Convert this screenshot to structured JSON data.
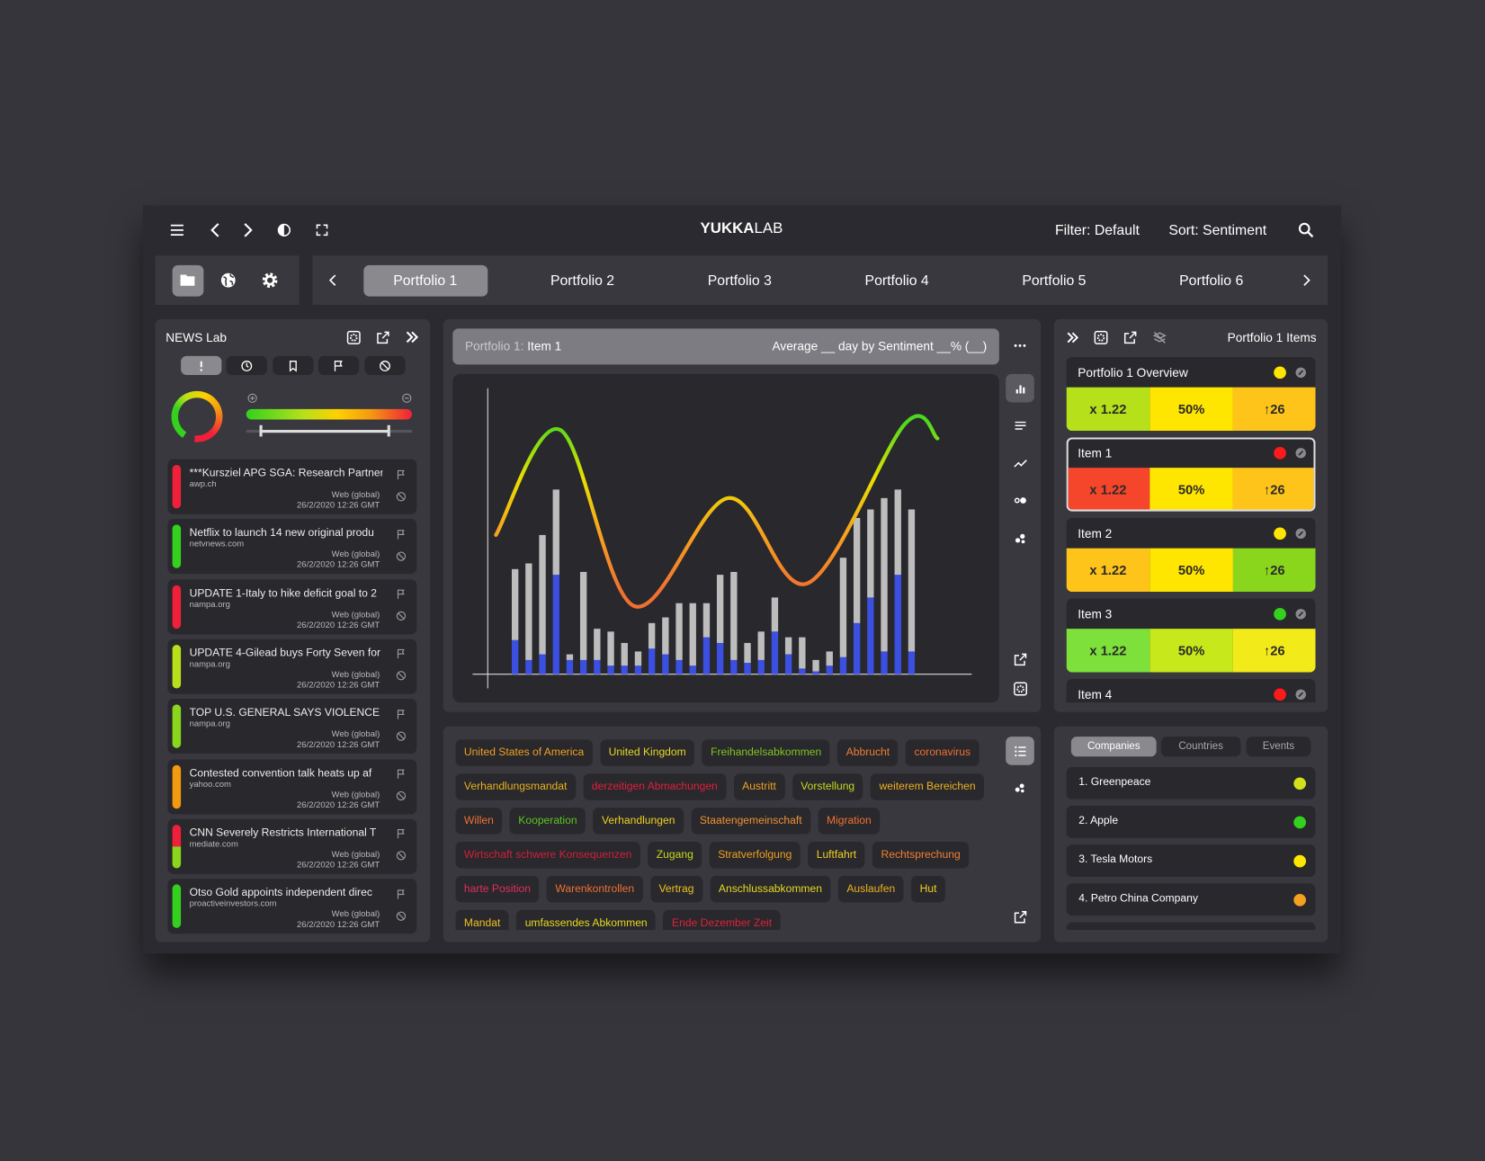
{
  "header": {
    "brand_bold": "YUKKA",
    "brand_light": "LAB",
    "filter": "Filter: Default",
    "sort": "Sort: Sentiment"
  },
  "tabs": {
    "items": [
      "Portfolio 1",
      "Portfolio 2",
      "Portfolio 3",
      "Portfolio 4",
      "Portfolio 5",
      "Portfolio 6"
    ],
    "active": 0
  },
  "news": {
    "title": "NEWS Lab",
    "items": [
      {
        "headline": "***Kursziel APG SGA: Research Partner",
        "source": "awp.ch",
        "origin": "Web (global)",
        "date": "26/2/2020 12:26 GMT",
        "colors": [
          "#f0203a"
        ]
      },
      {
        "headline": "Netflix to launch 14 new original produ",
        "source": "netvnews.com",
        "origin": "Web (global)",
        "date": "26/2/2020 12:26 GMT",
        "colors": [
          "#33d11e"
        ]
      },
      {
        "headline": "UPDATE 1-Italy to hike deficit goal to 2",
        "source": "nampa.org",
        "origin": "Web (global)",
        "date": "26/2/2020 12:26 GMT",
        "colors": [
          "#f0203a"
        ]
      },
      {
        "headline": "UPDATE 4-Gilead buys Forty Seven for",
        "source": "nampa.org",
        "origin": "Web (global)",
        "date": "26/2/2020 12:26 GMT",
        "colors": [
          "#b8e01a"
        ]
      },
      {
        "headline": "TOP U.S. GENERAL SAYS VIOLENCE IN",
        "source": "nampa.org",
        "origin": "Web (global)",
        "date": "26/2/2020 12:26 GMT",
        "colors": [
          "#8ad61c"
        ]
      },
      {
        "headline": "Contested convention talk heats up af",
        "source": "yahoo.com",
        "origin": "Web (global)",
        "date": "26/2/2020 12:26 GMT",
        "colors": [
          "#f49a10"
        ]
      },
      {
        "headline": "CNN Severely Restricts International T",
        "source": "mediate.com",
        "origin": "Web (global)",
        "date": "26/2/2020 12:26 GMT",
        "colors": [
          "#f0203a",
          "#8ad61c"
        ]
      },
      {
        "headline": "Otso Gold appoints independent direc",
        "source": "proactiveinvestors.com",
        "origin": "Web (global)",
        "date": "26/2/2020 12:26 GMT",
        "colors": [
          "#33d11e"
        ]
      }
    ]
  },
  "chart_panel": {
    "title_prefix": "Portfolio 1:",
    "title_item": "Item 1",
    "subtitle": "Average __ day by Sentiment __% (__)"
  },
  "chart_data": {
    "type": "bar",
    "ylim": [
      0,
      100
    ],
    "xlim": [
      -2,
      33.4
    ],
    "series": [
      {
        "color": "#3b4fe0",
        "values": [
          12,
          5,
          7,
          35,
          5,
          5,
          5,
          3,
          3,
          3,
          9,
          7,
          5,
          3,
          13,
          11,
          5,
          4,
          5,
          15,
          7,
          2,
          1,
          3,
          6,
          18,
          27,
          8,
          35,
          8
        ]
      },
      {
        "color": "#bdbdbd",
        "values": [
          25,
          34,
          42,
          30,
          2,
          31,
          11,
          12,
          8,
          5,
          9,
          13,
          20,
          22,
          12,
          24,
          31,
          7,
          10,
          12,
          6,
          11,
          4,
          5,
          35,
          37,
          31,
          54,
          30,
          50
        ]
      }
    ],
    "line": {
      "x": [
        -1.4,
        3.3,
        8.7,
        15.6,
        21.4,
        28.5,
        30.9
      ],
      "values": [
        49,
        86,
        24,
        62,
        32,
        88,
        83
      ],
      "colors": [
        "#4cd81e",
        "#e8e000",
        "#f7a020",
        "#f07030"
      ]
    }
  },
  "tags": [
    {
      "text": "United States of America",
      "color": "#f0a020"
    },
    {
      "text": "United Kingdom",
      "color": "#e8d820"
    },
    {
      "text": "Freihandelsabkommen",
      "color": "#7fc520"
    },
    {
      "text": "Abbrucht",
      "color": "#f08030"
    },
    {
      "text": "coronavirus",
      "color": "#f07030"
    },
    {
      "text": "Verhandlungsmandat",
      "color": "#e8b020"
    },
    {
      "text": "derzeitigen Abmachungen",
      "color": "#e0203a"
    },
    {
      "text": "Austritt",
      "color": "#f0a020"
    },
    {
      "text": "Vorstellung",
      "color": "#c8d820"
    },
    {
      "text": "weiterem Bereichen",
      "color": "#f0b020"
    },
    {
      "text": "Willen",
      "color": "#f07030"
    },
    {
      "text": "Kooperation",
      "color": "#5cc520"
    },
    {
      "text": "Verhandlungen",
      "color": "#f0d020"
    },
    {
      "text": "Staatengemeinschaft",
      "color": "#f09030"
    },
    {
      "text": "Migration",
      "color": "#f07030"
    },
    {
      "text": "Wirtschaft schwere Konsequenzen",
      "color": "#d0203a"
    },
    {
      "text": "Zugang",
      "color": "#c8d820"
    },
    {
      "text": "Stratverfolgung",
      "color": "#f0a020"
    },
    {
      "text": "Luftfahrt",
      "color": "#f0d020"
    },
    {
      "text": "Rechtsprechung",
      "color": "#f08030"
    },
    {
      "text": "harte Position",
      "color": "#e0305a"
    },
    {
      "text": "Warenkontrollen",
      "color": "#f07030"
    },
    {
      "text": "Vertrag",
      "color": "#f0c020"
    },
    {
      "text": "Anschlussabkommen",
      "color": "#e8d820"
    },
    {
      "text": "Auslaufen",
      "color": "#f0b020"
    },
    {
      "text": "Hut",
      "color": "#f0d020"
    },
    {
      "text": "Mandat",
      "color": "#f0c020"
    },
    {
      "text": "umfassendes Abkommen",
      "color": "#e8d820"
    },
    {
      "text": "Ende Dezember Zeit",
      "color": "#e0203a"
    }
  ],
  "items_panel": {
    "title": "Portfolio 1 Items",
    "selected": 1,
    "items": [
      {
        "name": "Portfolio 1 Overview",
        "status_color": "#ffe600",
        "cells": [
          {
            "text": "x 1.22",
            "color": "#b5e01a"
          },
          {
            "text": "50%",
            "color": "#ffe600"
          },
          {
            "text": "↑26",
            "color": "#ffc41a"
          }
        ]
      },
      {
        "name": "Item 1",
        "status_color": "#ff1a1a",
        "cells": [
          {
            "text": "x 1.22",
            "color": "#f5452a"
          },
          {
            "text": "50%",
            "color": "#ffe600"
          },
          {
            "text": "↑26",
            "color": "#ffc41a"
          }
        ]
      },
      {
        "name": "Item 2",
        "status_color": "#ffe600",
        "cells": [
          {
            "text": "x 1.22",
            "color": "#ffc41a"
          },
          {
            "text": "50%",
            "color": "#ffe600"
          },
          {
            "text": "↑26",
            "color": "#8ad61c"
          }
        ]
      },
      {
        "name": "Item 3",
        "status_color": "#33d11e",
        "cells": [
          {
            "text": "x 1.22",
            "color": "#7ee03a"
          },
          {
            "text": "50%",
            "color": "#c7e81a"
          },
          {
            "text": "↑26",
            "color": "#f3ea1a"
          }
        ]
      },
      {
        "name": "Item 4",
        "status_color": "#ff1a1a"
      }
    ]
  },
  "lists": {
    "tabs": [
      "Companies",
      "Countries",
      "Events"
    ],
    "active": 0,
    "rows": [
      {
        "name": "1. Greenpeace",
        "color": "#d4e01a"
      },
      {
        "name": "2. Apple",
        "color": "#33d11e"
      },
      {
        "name": "3. Tesla Motors",
        "color": "#ffe600"
      },
      {
        "name": "4. Petro China Company",
        "color": "#f4a020"
      }
    ]
  }
}
